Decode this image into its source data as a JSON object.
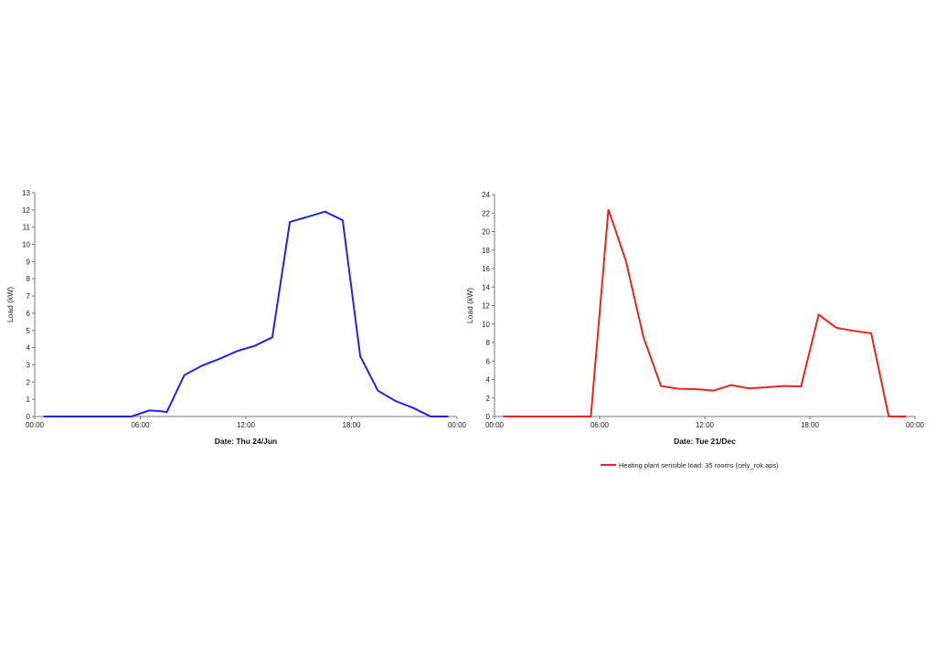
{
  "chart_data": [
    {
      "type": "line",
      "xlabel": "Date: Thu 24/Jun",
      "ylabel": "Load (kW)",
      "ylim": [
        0,
        13
      ],
      "yticks": [
        0,
        1,
        2,
        3,
        4,
        5,
        6,
        7,
        8,
        9,
        10,
        11,
        12,
        13
      ],
      "xlim": [
        0,
        24
      ],
      "xtick_values": [
        0,
        6,
        12,
        18,
        24
      ],
      "xtick_labels": [
        "00:00",
        "06:00",
        "12:00",
        "18:00",
        "00:00"
      ],
      "grid": false,
      "series": [
        {
          "color": "#2222ee",
          "x": [
            0.5,
            1.5,
            2.5,
            3.5,
            4.5,
            5.5,
            6.5,
            7.2,
            7.5,
            8.5,
            9.5,
            10.5,
            11.5,
            12.5,
            13.5,
            14.5,
            15.5,
            16.5,
            17.5,
            18.5,
            19.5,
            20.5,
            21.5,
            22.5,
            23.5
          ],
          "y": [
            0,
            0,
            0,
            0,
            0,
            0,
            0.35,
            0.3,
            0.25,
            2.4,
            2.95,
            3.35,
            3.8,
            4.1,
            4.6,
            11.3,
            11.6,
            11.9,
            11.4,
            3.5,
            1.5,
            0.9,
            0.5,
            0,
            0
          ]
        }
      ]
    },
    {
      "type": "line",
      "xlabel": "Date: Tue 21/Dec",
      "ylabel": "Load (kW)",
      "ylim": [
        0,
        24
      ],
      "yticks": [
        0,
        2,
        4,
        6,
        8,
        10,
        12,
        14,
        16,
        18,
        20,
        22,
        24
      ],
      "xlim": [
        0,
        24
      ],
      "xtick_values": [
        0,
        6,
        12,
        18,
        24
      ],
      "xtick_labels": [
        "00:00",
        "06:00",
        "12:00",
        "18:00",
        "00:00"
      ],
      "grid": false,
      "legend": "bottom",
      "series": [
        {
          "name": "Heating plant sensible load: 35 rooms (cely_rok.aps)",
          "color": "#ee2222",
          "x": [
            0.5,
            1.5,
            2.5,
            3.5,
            4.5,
            5.5,
            6.5,
            7.5,
            8.5,
            9.5,
            10.5,
            11.5,
            12.5,
            13.5,
            14.5,
            15.5,
            16.5,
            17.5,
            18.5,
            19.5,
            20.5,
            21.5,
            22.5,
            23.5
          ],
          "y": [
            0,
            0,
            0,
            0,
            0,
            0,
            22.4,
            16.8,
            8.6,
            3.3,
            3.0,
            2.95,
            2.8,
            3.4,
            3.05,
            3.15,
            3.3,
            3.25,
            11.0,
            9.6,
            9.25,
            9.0,
            0,
            0
          ]
        }
      ]
    }
  ]
}
